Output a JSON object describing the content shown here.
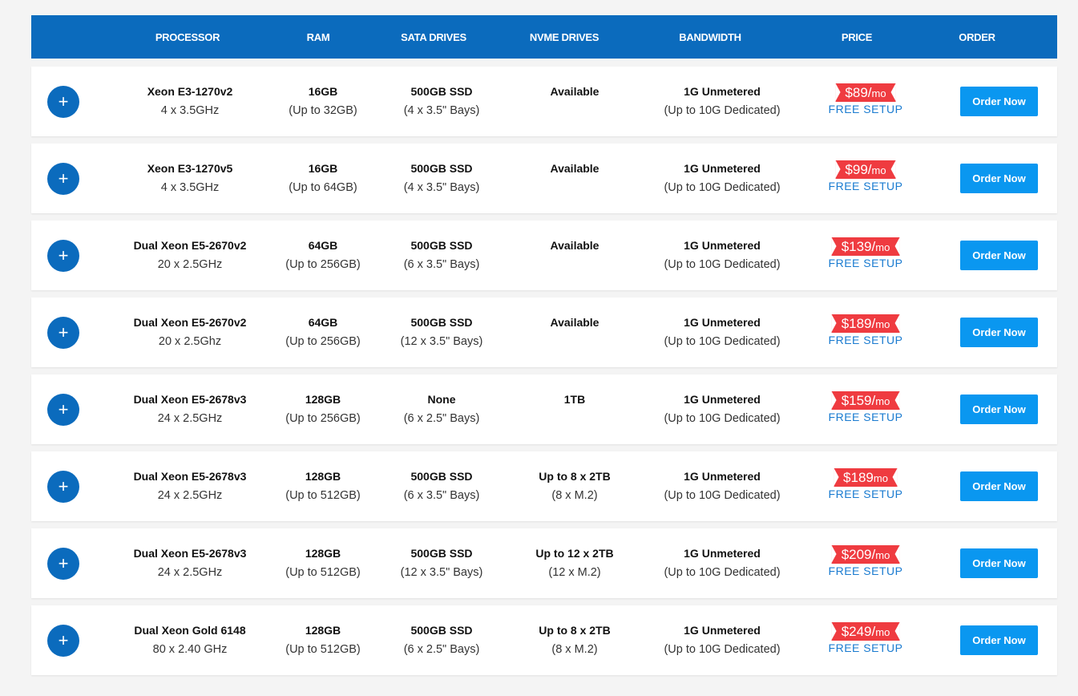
{
  "header": {
    "processor": "PROCESSOR",
    "ram": "RAM",
    "sata": "SATA DRIVES",
    "nvme": "NVME DRIVES",
    "bandwidth": "BANDWIDTH",
    "price": "PRICE",
    "order": "ORDER"
  },
  "colors": {
    "header_bg": "#0b6bbd",
    "button": "#0a97f0",
    "price_ribbon": "#ef3b40",
    "setup_text": "#1a7bd0"
  },
  "icons": {
    "expand": "plus-icon"
  },
  "expand_glyph": "+",
  "rows": [
    {
      "cpu": "Xeon E3-1270v2",
      "cores": "4 x 3.5GHz",
      "ram": "16GB",
      "ram_max": "(Up to 32GB)",
      "sata": "500GB SSD",
      "sata_bays": "(4 x 3.5\" Bays)",
      "nvme": "Available",
      "nvme_sub": "",
      "bw": "1G Unmetered",
      "bw_sub": "(Up to 10G Dedicated)",
      "price": "$89/",
      "unit": "mo",
      "setup": "FREE SETUP",
      "order": "Order Now"
    },
    {
      "cpu": "Xeon E3-1270v5",
      "cores": "4 x 3.5GHz",
      "ram": "16GB",
      "ram_max": "(Up to 64GB)",
      "sata": "500GB SSD",
      "sata_bays": "(4 x 3.5\" Bays)",
      "nvme": "Available",
      "nvme_sub": "",
      "bw": "1G Unmetered",
      "bw_sub": "(Up to 10G Dedicated)",
      "price": "$99/",
      "unit": "mo",
      "setup": "FREE SETUP",
      "order": "Order Now"
    },
    {
      "cpu": "Dual Xeon E5-2670v2",
      "cores": "20 x 2.5GHz",
      "ram": "64GB",
      "ram_max": "(Up to 256GB)",
      "sata": "500GB SSD",
      "sata_bays": "(6 x 3.5\" Bays)",
      "nvme": "Available",
      "nvme_sub": "",
      "bw": "1G Unmetered",
      "bw_sub": "(Up to 10G Dedicated)",
      "price": "$139/",
      "unit": "mo",
      "setup": "FREE SETUP",
      "order": "Order Now"
    },
    {
      "cpu": "Dual Xeon E5-2670v2",
      "cores": "20 x 2.5Ghz",
      "ram": "64GB",
      "ram_max": "(Up to 256GB)",
      "sata": "500GB SSD",
      "sata_bays": "(12 x 3.5\" Bays)",
      "nvme": "Available",
      "nvme_sub": "",
      "bw": "1G Unmetered",
      "bw_sub": "(Up to 10G Dedicated)",
      "price": "$189/",
      "unit": "mo",
      "setup": "FREE SETUP",
      "order": "Order Now"
    },
    {
      "cpu": "Dual Xeon E5-2678v3",
      "cores": "24 x 2.5GHz",
      "ram": "128GB",
      "ram_max": "(Up to 256GB)",
      "sata": "None",
      "sata_bays": "(6 x 2.5\" Bays)",
      "nvme": "1TB",
      "nvme_sub": "",
      "bw": "1G Unmetered",
      "bw_sub": "(Up to 10G Dedicated)",
      "price": "$159/",
      "unit": "mo",
      "setup": "FREE SETUP",
      "order": "Order Now"
    },
    {
      "cpu": "Dual Xeon E5-2678v3",
      "cores": "24 x 2.5GHz",
      "ram": "128GB",
      "ram_max": "(Up to 512GB)",
      "sata": "500GB SSD",
      "sata_bays": "(6 x 3.5\" Bays)",
      "nvme": "Up to 8 x 2TB",
      "nvme_sub": "(8 x M.2)",
      "bw": "1G Unmetered",
      "bw_sub": "(Up to 10G Dedicated)",
      "price": "$189",
      "unit": "mo",
      "setup": "FREE SETUP",
      "order": "Order Now"
    },
    {
      "cpu": "Dual Xeon E5-2678v3",
      "cores": "24 x 2.5GHz",
      "ram": "128GB",
      "ram_max": "(Up to 512GB)",
      "sata": "500GB SSD",
      "sata_bays": "(12 x 3.5\" Bays)",
      "nvme": "Up to 12 x 2TB",
      "nvme_sub": "(12 x M.2)",
      "bw": "1G Unmetered",
      "bw_sub": "(Up to 10G Dedicated)",
      "price": "$209/",
      "unit": "mo",
      "setup": "FREE SETUP",
      "order": "Order Now"
    },
    {
      "cpu": "Dual Xeon Gold 6148",
      "cores": "80 x 2.40 GHz",
      "ram": "128GB",
      "ram_max": "(Up to 512GB)",
      "sata": "500GB SSD",
      "sata_bays": "(6 x 2.5\" Bays)",
      "nvme": "Up to 8 x 2TB",
      "nvme_sub": "(8 x M.2)",
      "bw": "1G Unmetered",
      "bw_sub": "(Up to 10G Dedicated)",
      "price": "$249/",
      "unit": "mo",
      "setup": "FREE SETUP",
      "order": "Order Now"
    }
  ]
}
